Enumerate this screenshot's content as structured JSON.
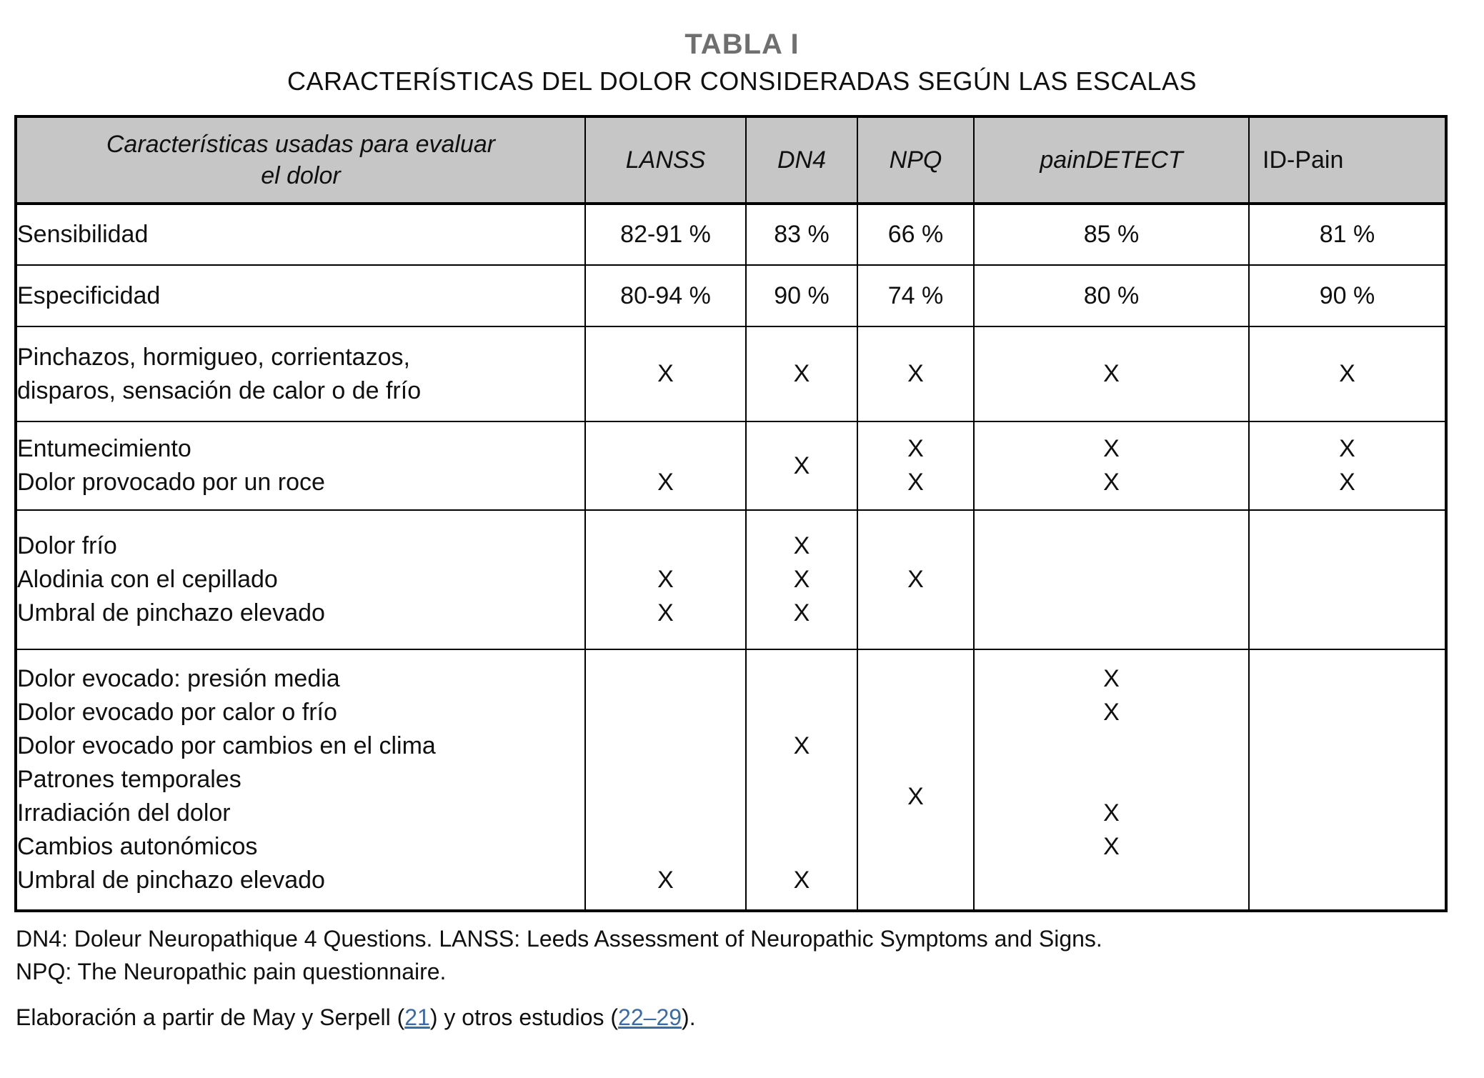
{
  "page": {
    "title": "TABLA I",
    "subtitle": "CARACTERÍSTICAS DEL DOLOR CONSIDERADAS SEGÚN LAS ESCALAS"
  },
  "colors": {
    "header_bg": "#c6c6c6",
    "title_gray": "#6f6f6f",
    "link_blue": "#3a6ba6",
    "border": "#000000",
    "text": "#101010"
  },
  "table": {
    "header": {
      "label_lines": [
        "Características usadas para evaluar",
        "el dolor"
      ],
      "scales": [
        "LANSS",
        "DN4",
        "NPQ",
        "painDETECT",
        "ID-Pain"
      ]
    },
    "mark_glyph": "X",
    "rows": {
      "sensibilidad": {
        "label": "Sensibilidad",
        "values": [
          "82-91 %",
          "83 %",
          "66 %",
          "85 %",
          "81 %"
        ]
      },
      "especificidad": {
        "label": "Especificidad",
        "values": [
          "80-94 %",
          "90 %",
          "74 %",
          "80 %",
          "90 %"
        ]
      },
      "pinchazos": {
        "label_lines": [
          "Pinchazos, hormigueo, corrientazos,",
          "disparos, sensación de calor o de frío"
        ],
        "lanss": "X",
        "dn4": "X",
        "npq": "X",
        "paindetect": "X",
        "idpain": "X"
      },
      "entumecimiento": {
        "label_lines": [
          "Entumecimiento",
          "Dolor provocado por un roce"
        ],
        "lanss": [
          "",
          "X"
        ],
        "dn4_center": "X",
        "npq": [
          "X",
          "X"
        ],
        "paindetect": [
          "X",
          "X"
        ],
        "idpain": [
          "X",
          "X"
        ]
      },
      "dolor_frio": {
        "label_lines": [
          "Dolor frío",
          "Alodinia con el cepillado",
          "Umbral de pinchazo elevado"
        ],
        "lanss": [
          "",
          "X",
          "X"
        ],
        "dn4": [
          "X",
          "X",
          "X"
        ],
        "npq": [
          "",
          "X",
          ""
        ]
      },
      "dolor_evocado": {
        "label_lines": [
          "Dolor evocado: presión media",
          "Dolor evocado por calor o frío",
          "Dolor evocado por cambios en el clima",
          "Patrones temporales",
          "Irradiación del dolor",
          "Cambios autonómicos",
          "Umbral de pinchazo elevado"
        ],
        "lanss": [
          "",
          "",
          "",
          "",
          "",
          "",
          "X"
        ],
        "dn4": [
          "",
          "",
          "X",
          "",
          "",
          "",
          "X"
        ],
        "npq_between_lines_4_5": "X",
        "paindetect": [
          "X",
          "X",
          "",
          "",
          "X",
          "X",
          ""
        ]
      }
    }
  },
  "footnotes": {
    "line1": "DN4: Doleur Neuropathique 4 Questions. LANSS: Leeds Assessment of Neuropathic Symptoms and Signs.",
    "line2": "NPQ: The Neuropathic pain questionnaire.",
    "elaboracion": {
      "prefix": "Elaboración a partir de May y Serpell (",
      "ref1": "21",
      "middle": ") y otros estudios (",
      "ref2": "22–29",
      "suffix": ")."
    }
  }
}
